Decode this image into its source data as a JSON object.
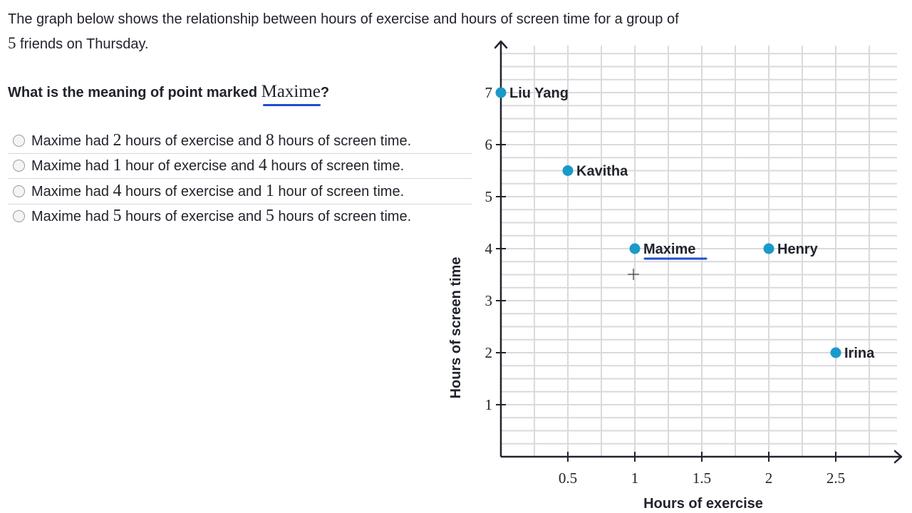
{
  "intro": {
    "part1": "The graph below shows the relationship between hours of exercise and hours of screen time for a group of",
    "number": "5",
    "part2": " friends on Thursday."
  },
  "question": {
    "prefix": "What is the meaning of point marked ",
    "name": "Maxime",
    "suffix": "?"
  },
  "options": [
    {
      "a": "Maxime had ",
      "n1": "2",
      "b": " hours of exercise and ",
      "n2": "8",
      "c": " hours of screen time."
    },
    {
      "a": "Maxime had ",
      "n1": "1",
      "b": " hour of exercise and ",
      "n2": "4",
      "c": " hours of screen time."
    },
    {
      "a": "Maxime had ",
      "n1": "4",
      "b": " hours of exercise and ",
      "n2": "1",
      "c": " hour of screen time."
    },
    {
      "a": "Maxime had ",
      "n1": "5",
      "b": " hours of exercise and ",
      "n2": "5",
      "c": " hours of screen time."
    }
  ],
  "colors": {
    "point": "#1a9ac8",
    "highlight": "#1c4ed0",
    "grid": "#d9dadb",
    "axis": "#21242c"
  },
  "chart_data": {
    "type": "scatter",
    "title": "",
    "xlabel": "Hours of exercise",
    "ylabel": "Hours of screen time",
    "xlim": [
      0,
      3
    ],
    "ylim": [
      0,
      8
    ],
    "x_ticks": [
      "0.5",
      "1",
      "1.5",
      "2",
      "2.5"
    ],
    "y_ticks": [
      "1",
      "2",
      "3",
      "4",
      "5",
      "6",
      "7"
    ],
    "grid": true,
    "points": [
      {
        "name": "Liu Yang",
        "x": 0,
        "y": 7
      },
      {
        "name": "Kavitha",
        "x": 0.5,
        "y": 5.5
      },
      {
        "name": "Maxime",
        "x": 1,
        "y": 4,
        "highlighted": true
      },
      {
        "name": "Henry",
        "x": 2,
        "y": 4
      },
      {
        "name": "Irina",
        "x": 2.5,
        "y": 2
      }
    ]
  }
}
